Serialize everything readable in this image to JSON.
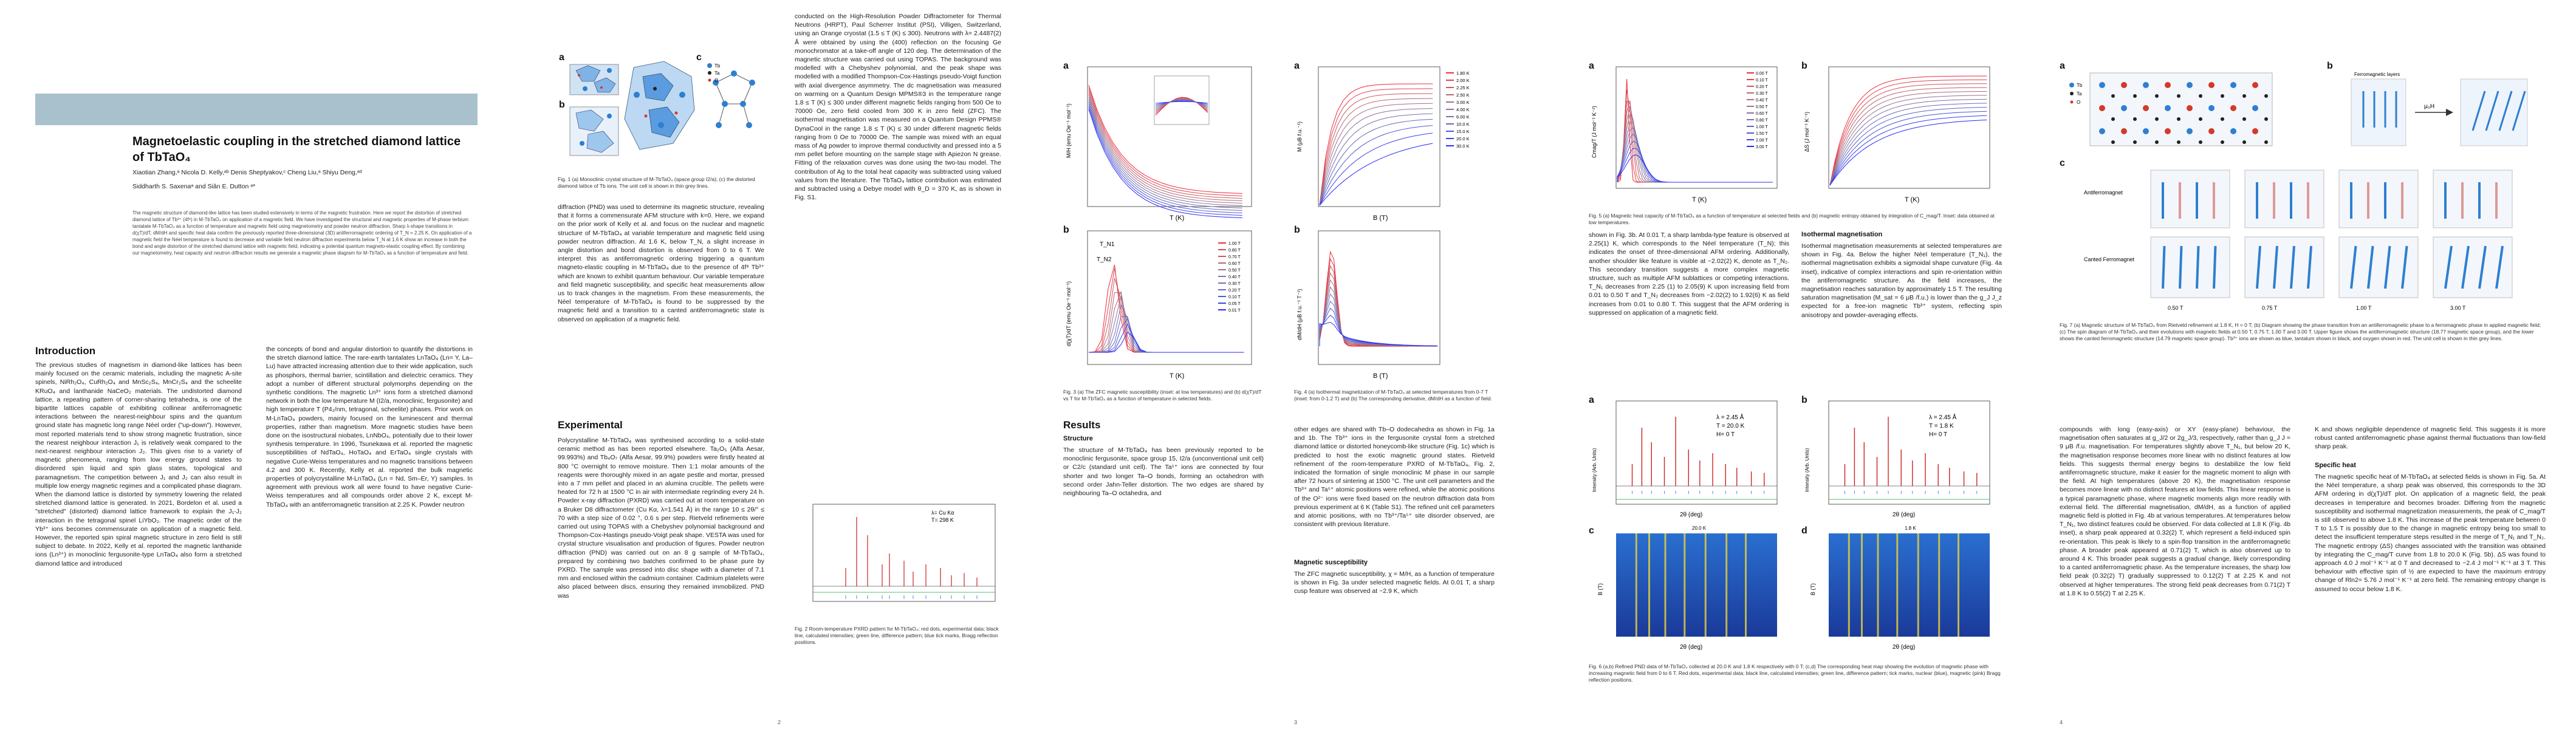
{
  "paper": {
    "title": "Magnetoelastic coupling in the stretched diamond lattice of TbTaO₄",
    "authors_line1": "Xiaotian Zhang,ᵃ Nicola D. Kelly,ᵃᵇ Denis Sheptyakov,ᶜ Cheng Liu,ᵃ Shiyu Deng,ᵃᵈ",
    "authors_line2": "Siddharth S. Saxenaᵃ and Siân E. Dutton ᵃ*",
    "abstract": "The magnetic structure of diamond-like lattice has been studied extensively in terms of the magnetic frustration. Here we report the distortion of stretched diamond lattice of Tb³⁺ (4f⁸) in M-TbTaO₄ on application of a magnetic field. We have investigated the structural and magnetic properties of M-phase terbium tantalate M-TbTaO₄ as a function of temperature and magnetic field using magnetometry and powder neutron diffraction. Sharp λ-shape transitions in d(χT)/dT, dM/dH and specific heat data confirm the previously reported three-dimensional (3D) antiferromagnetic ordering of T_N = 2.25 K. On application of a magnetic field the Néel temperature is found to decrease and variable field neutron diffraction experiments below T_N at 1.6 K show an increase in both the bond and angle distortion of the stretched diamond lattice with magnetic field, indicating a potential quantum magneto-elastic coupling effect. By combining our magnetometry, heat capacity and neutron diffraction results we generate a magnetic phase diagram for M-TbTaO₄ as a function of temperature and field."
  },
  "headings": {
    "introduction": "Introduction",
    "experimental": "Experimental",
    "results": "Results",
    "structure": "Structure",
    "magnetic_susceptibility": "Magnetic susceptibility",
    "isothermal_magnetisation": "Isothermal magnetisation",
    "specific_heat": "Specific heat"
  },
  "text": {
    "intro_col1": "The previous studies of magnetism in diamond-like lattices has been mainly focused on the ceramic materials, including the magnetic A-site spinels, NiRh₂O₄, CuRh₂O₄ and MnSc₂S₄, MnCr₂S₄ and the scheelite KRuO₄ and lanthanide NaCeO₂ materials. The undistorted diamond lattice, a repeating pattern of corner-sharing tetrahedra, is one of the bipartite lattices capable of exhibiting collinear antiferromagnetic interactions between the nearest-neighbour spins and the quantum ground state has magnetic long range Néel order (\"up-down\"). However, most reported materials tend to show strong magnetic frustration, since the nearest neighbour interaction J₁ is relatively weak compared to the next-nearest neighbour interaction J₂. This gives rise to a variety of magnetic phenomena, ranging from low energy ground states to disordered spin liquid and spin glass states, topological and paramagnetism. The competition between J₁ and J₂ can also result in multiple low energy magnetic regimes and a complicated phase diagram. When the diamond lattice is distorted by symmetry lowering the related stretched diamond lattice is generated. In 2021, Bordelon et al. used a \"stretched\" (distorted) diamond lattice framework to explain the J₁-J₂ interaction in the tetragonal spinel LiYbO₂. The magnetic order of the Yb³⁺ ions becomes commensurate on application of a magnetic field. However, the reported spin spiral magnetic structure in zero field is still subject to debate. In 2022, Kelly et al. reported the magnetic lanthanide ions (Ln³⁺) in monoclinic fergusonite-type LnTaO₄ also form a stretched diamond lattice and introduced",
    "intro_col2": "the concepts of bond and angular distortion to quantify the distortions in the stretch diamond lattice. The rare-earth tantalates LnTaO₄ (Ln= Y, La–Lu) have attracted increasing attention due to their wide application, such as phosphors, thermal barrier, scintillation and dielectric ceramics. They adopt a number of different structural polymorphs depending on the synthetic conditions. The magnetic Ln³⁺ ions form a stretched diamond network in both the low temperature M (I2/a, monoclinic, fergusonite) and high temperature T (P4₂/nm, tetragonal, scheelite) phases. Prior work on M-LnTaO₄ powders, mainly focused on the luminescent and thermal properties, rather than magnetism. More magnetic studies have been done on the isostructural niobates, LnNbO₄, potentially due to their lower synthesis temperature. In 1996, Tsunekawa et al. reported the magnetic susceptibilities of NdTaO₄, HoTaO₄ and ErTaO₄ single crystals with negative Curie-Weiss temperatures and no magnetic transitions between 4.2 and 300 K. Recently, Kelly et al. reported the bulk magnetic properties of polycrystalline M-LnTaO₄ (Ln = Nd, Sm–Er, Y) samples. In agreement with previous work all were found to have negative Curie-Weiss temperatures and all compounds order above 2 K, except M-TbTaO₄ with an antiferromagnetic transition at 2.25 K. Powder neutron",
    "p2_top": "diffraction (PND) was used to determine its magnetic structure, revealing that it forms a commensurate AFM structure with k=0. Here, we expand on the prior work of Kelly et al. and focus on the nuclear and magnetic structure of M-TbTaO₄ at variable temperature and magnetic field using powder neutron diffraction. At 1.6 K, below T_N, a slight increase in angle distortion and bond distortion is observed from 0 to 6 T. We interpret this as antiferromagnetic ordering triggering a quantum magneto-elastic coupling in M-TbTaO₄ due to the presence of 4f⁸ Tb³⁺ which are known to exhibit quantum behaviour. Our variable temperature and field magnetic susceptibility, and specific heat measurements allow us to track changes in the magnetism. From these measurements, the Néel temperature of M-TbTaO₄ is found to be suppressed by the magnetic field and a transition to a canted antiferromagnetic state is observed on application of a magnetic field.",
    "experimental": "Polycrystalline M-TbTaO₄ was synthesised according to a solid-state ceramic method as has been reported elsewhere. Ta₂O₅ (Alfa Aesar, 99.993%) and Tb₄O₇ (Alfa Aesar, 99.9%) powders were firstly heated at 800 °C overnight to remove moisture. Then 1:1 molar amounts of the reagents were thoroughly mixed in an agate pestle and mortar, pressed into a 7 mm pellet and placed in an alumina crucible. The pellets were heated for 72 h at 1500 °C in air with intermediate regrinding every 24 h. Powder x-ray diffraction (PXRD) was carried out at room temperature on a Bruker D8 diffractometer (Cu Kα, λ=1.541 Å) in the range 10 ≤ 2θ/° ≤ 70 with a step size of 0.02 °, 0.6 s per step. Rietveld refinements were carried out using TOPAS with a Chebyshev polynomial background and Thompson-Cox-Hastings pseudo-Voigt peak shape. VESTA was used for crystal structure visualisation and production of figures. Powder neutron diffraction (PND) was carried out on an 8 g sample of M-TbTaO₄, prepared by combining two batches confirmed to be phase pure by PXRD. The sample was pressed into disc shape with a diameter of 7.1 mm and enclosed within the cadmium container. Cadmium platelets were also placed between discs, ensuring they remained immobilized. PND was",
    "p2_col2": "conducted on the High-Resolution Powder Diffractometer for Thermal Neutrons (HRPT), Paul Scherrer Institut (PSI), Villigen, Switzerland, using an Orange cryostat (1.5 ≤ T (K) ≤ 300). Neutrons with λ= 2.4487(2) Å were obtained by using the (400) reflection on the focusing Ge monochromator at a take-off angle of 120 deg. The determination of the magnetic structure was carried out using TOPAS. The background was modelled with a Chebyshev polynomial, and the peak shape was modelled with a modified Thompson-Cox-Hastings pseudo-Voigt function with axial divergence asymmetry. The dc magnetisation was measured on warming on a Quantum Design MPMS®3 in the temperature range 1.8 ≤ T (K) ≤ 300 under different magnetic fields ranging from 500 Oe to 70000 Oe, zero field cooled from 300 K in zero field (ZFC). The isothermal magnetisation was measured on a Quantum Design PPMS® DynaCool in the range 1.8 ≤ T (K) ≤ 30 under different magnetic fields ranging from 0 Oe to 70000 Oe. The sample was mixed with an equal mass of Ag powder to improve thermal conductivity and pressed into a 5 mm pellet before mounting on the sample stage with Apiezon N grease. Fitting of the relaxation curves was done using the two-tau model. The contribution of Ag to the total heat capacity was subtracted using valued values from the literature. The TbTaO₄ lattice contribution was estimated and subtracted using a Debye model with θ_D = 370 K, as is shown in Fig. S1.",
    "structure_text": "The structure of M-TbTaO₄ has been previously reported to be monoclinic fergusonite, space group 15, I2/a (unconventional unit cell) or C2/c (standard unit cell). The Ta⁵⁺ ions are connected by four shorter and two longer Ta–O bonds, forming an octahedron with second order Jahn-Teller distortion. The two edges are shared by neighbouring Ta–O octahedra, and",
    "p3_top": "other edges are shared with Tb–O dodecahedra as shown in Fig. 1a and 1b. The Tb³⁺ ions in the fergusonite crystal form a stretched diamond lattice or distorted honeycomb-like structure (Fig. 1c) which is predicted to host the exotic magnetic ground states. Rietveld refinement of the room-temperature PXRD of M-TbTaO₄, Fig. 2, indicated the formation of single monoclinic M phase in our sample after 72 hours of sintering at 1500 °C. The unit cell parameters and the Tb³⁺ and Ta⁵⁺ atomic positions were refined, while the atomic positions of the O²⁻ ions were fixed based on the neutron diffraction data from previous experiment at 6 K (Table S1). The refined unit cell parameters and atomic positions, with no Tb³⁺/Ta⁵⁺ site disorder observed, are consistent with previous literature.",
    "magsus_text": "The ZFC magnetic susceptibility, χ = M/H, as a function of temperature is shown in Fig. 3a under selected magnetic fields. At 0.01 T, a sharp cusp feature was observed at ~2.9 K, which",
    "p3_col2": "agrees with the susceptibility data reported by Kelly et al. The cusp temperature decreases from 2.91(8) to 2.08(8) K upon increasing the field from 0.01 to 0.80 T. Above 0.80 T, the AFM ordering is gradually evolving to a FM-like ordering where χ saturates at low temperature. At high temperatures, the magnetic susceptibility is independent of field and fits the modified Curie-Weiss law:",
    "p3_col2b": "Fitting to the Curie-Weiss law was carried out using the data collected at 1 T for T > 50 K. The effective magnetic moment was calculated from the experimental data using μ_eff/μ_B = √(8C) and compared with the theoretical moment g_J√(J(J+1)). The effective moment inferred from the fit is 10.23 μB, which is of the same order of the theoretical value 9.72 μB, and the Weiss temperature is −9.4(7) K consistent with that reported by Kelly et al. The derivative of the product χT with respect to temperature, d(χT)/dT as a function of temperature at selected fields are in",
    "p4_col1": "shown in Fig. 3b. At 0.01 T, a sharp lambda-type feature is observed at 2.25(1) K, which corresponds to the Néel temperature (T_N); this indicates the onset of three-dimensional AFM ordering. Additionally, another shoulder like feature is visible at ~2.02(2) K, denote as T_N₂. This secondary transition suggests a more complex magnetic structure, such as multiple AFM sublattices or competing interactions. T_N₁ decreases from 2.25 (1) to 2.05(9) K upon increasing field from 0.01 to 0.50 T and T_N₂ decreases from ~2.02(2) to 1.92(6) K as field increases from 0.01 to 0.80 T. This suggest that the AFM ordering is suppressed on application of a magnetic field.",
    "isomag_text": "Isothermal magnetisation measurements at selected temperatures are shown in Fig. 4a. Below the higher Néel temperature (T_N₁), the isothermal magnetisation exhibits a sigmoidal shape curvature (Fig. 4a inset), indicative of complex interactions and spin re-orientation within the antiferromagnetic structure. As the field increases, the magnetisation reaches saturation by approximately 1.5 T. The resulting saturation magnetisation (M_sat = 6 μB /f.u.) is lower than the g_J J_z expected for a free-ion magnetic Tb³⁺ system, reflecting spin anisotropy and powder-averaging effects.",
    "p4_col3": "compounds with long (easy-axis) or XY (easy-plane) behaviour, the magnetisation often saturates at g_J/2 or 2g_J/3, respectively, rather than g_J J = 9 μB /f.u. magnetisation. For temperatures slightly above T_N₁, but below 20 K, the magnetisation response becomes more linear with no distinct features at low fields. This suggests thermal energy begins to destabilize the low field antiferromagnetic structure, make it easier for the magnetic moment to align with the field. At high temperatures (above 20 K), the magnetisation response becomes more linear with no distinct features at low fields. This linear response is a typical paramagnetic phase, where magnetic moments align more readily with external field. The differential magnetisation, dM/dH, as a function of applied magnetic field is plotted in Fig. 4b at various temperatures. At temperatures below T_N₁, two distinct features could be observed. For data collected at 1.8 K (Fig. 4b inset), a sharp peak appeared at 0.32(2) T, which represent a field-induced spin re-orientation. This peak is likely to a spin-flop transition in the antiferromagnetic phase. A broader peak appeared at 0.71(2) T, which is also observed up to around 4 K. This broader peak suggests a gradual change, likely corresponding to a canted antiferromagnetic phase. As the temperature increases, the sharp low field peak (0.32(2) T) gradually suppressed to 0.12(2) T at 2.25 K and not observed at higher temperatures. The strong field peak decreases from 0.71(2) T at 1.8 K to 0.55(2) T at 2.25 K.",
    "p4_col4": "K and shows negligible dependence of magnetic field. This suggests it is more robust canted antiferromagnetic phase against thermal fluctuations than low-field sharp peak.",
    "specheat_text": "The magnetic specific heat of M-TbTaO₄ at selected fields is shown in Fig. 5a. At the Néel temperature, a sharp peak was observed, this corresponds to the 3D AFM ordering in d(χT)/dT plot. On application of a magnetic field, the peak decreases in temperature and becomes broader. Differing from the magnetic susceptibility and isothermal magnetization measurements, the peak of C_mag/T is still observed to above 1.8 K. This increase of the peak temperature between 0 T to 1.5 T is possibly due to the change in magnetic entropy being too small to detect the insufficient temperature steps resulted in the merge of T_N₁ and T_N₂. The magnetic entropy (ΔS) changes associated with the transition was obtained by integrating the C_mag/T curve from 1.8 to 20.0 K (Fig. 5b). ΔS was found to approach 4.0 J mol⁻¹ K⁻¹ at 0 T and decreased to ~2.4 J mol⁻¹ K⁻¹ at 3 T. This behaviour with effective spin of ½ are expected to have the maximum entropy change of Rln2= 5.76 J mol⁻¹ K⁻¹ at zero field. The remaining entropy change is assumed to occur below 1.8 K."
  },
  "equation": "χ = C / (T − θ_W) + χ₀",
  "captions": {
    "fig1": "Fig. 1 (a) Monoclinic crystal structure of M-TbTaO₄ (space group I2/a); (c) the distorted diamond lattice of Tb ions. The unit cell is shown in thin grey lines.",
    "fig2": "Fig. 2 Room-temperature PXRD pattern for M-TbTaO₄: red dots, experimental data; black line, calculated intensities; green line, difference pattern; blue tick marks, Bragg reflection positions.",
    "fig3": "Fig. 3 (a) The ZFC magnetic susceptibility (inset: at low temperatures) and (b) d(χT)/dT vs T for M-TbTaO₄ as a function of temperature in selected fields.",
    "fig4": "Fig. 4 (a) Isothermal magnetization of M-TbTaO₄ at selected temperatures from 0-7 T (inset: from 0-1.2 T) and (b) The corresponding derivative, dM/dH as a function of field.",
    "fig5": "Fig. 5 (a) Magnetic heat capacity of M-TbTaO₄ as a function of temperature at selected fields and (b) magnetic entropy obtained by integration of C_mag/T. Inset: data obtained at low temperatures.",
    "fig6": "Fig. 6 (a,b) Refined PND data of M-TbTaO₄ collected at 20.0 K and 1.8 K respectively with 0 T; (c,d) The corresponding heat map showing the evolution of magnetic phase with increasing magnetic field from 0 to 6 T. Red dots, experimental data; black line, calculated intensities; green line, difference pattern; tick marks, nuclear (blue), magnetic (pink) Bragg reflection positions.",
    "fig7": "Fig. 7 (a) Magnetic structure of M-TbTaO₄ from Rietveld refinement at 1.8 K, H = 0 T; (b) Diagram showing the phase transition from an antiferromagnetic phase to a ferromagnetic phase in applied magnetic field; (c) The spin diagram of M-TbTaO₄ and their evolutions with magnetic fields at 0.50 T, 0.75 T, 1.00 T and 3.00 T. Upper figure shows the antiferromagnetic structure (18.77 magnetic space group), and the lower shows the canted ferromagnetic structure (14.79 magnetic space group). Tb³⁺ ions are shown as blue, tantalum shown in black, and oxygen shown in red. The unit cell is shown in thin grey lines."
  },
  "fig_labels": {
    "fig1_a": "a",
    "fig1_b": "b",
    "fig1_c": "c",
    "fig3_a": "a",
    "fig3_b": "b",
    "fig4_a": "a",
    "fig4_b": "b",
    "fig5_a": "a",
    "fig5_b": "b",
    "fig6_a": "a",
    "fig6_b": "b",
    "fig6_c": "c",
    "fig6_d": "d",
    "fig7_a": "a",
    "fig7_b": "b",
    "fig7_c": "c"
  },
  "fig1_legend": {
    "tb": "Tb",
    "ta": "Ta",
    "o": "O"
  },
  "fig2_legend": {
    "line1": "λ= Cu Kα",
    "line2": "T= 298 K"
  },
  "fig3": {
    "a_ylabel": "M/H (emu Oe⁻¹ mol⁻¹)",
    "b_ylabel": "d(χT)/dT (emu Oe⁻¹ mol⁻¹)",
    "xlabel": "T (K)",
    "legend_fields": [
      "1.00 T",
      "0.80 T",
      "0.70 T",
      "0.60 T",
      "0.50 T",
      "0.40 T",
      "0.30 T",
      "0.20 T",
      "0.10 T",
      "0.05 T",
      "0.01 T"
    ],
    "tn1": "T_N1",
    "tn2": "T_N2"
  },
  "fig4": {
    "a_ylabel": "M (μB f.u.⁻¹)",
    "b_ylabel": "dM/dH (μB f.u.⁻¹ T⁻¹)",
    "xlabel": "B (T)",
    "legend_temps": [
      "1.80 K",
      "2.00 K",
      "2.25 K",
      "2.50 K",
      "3.00 K",
      "4.00 K",
      "6.00 K",
      "10.0 K",
      "15.0 K",
      "20.0 K",
      "30.0 K"
    ]
  },
  "fig5": {
    "a_ylabel": "Cmag/T (J mol⁻¹ K⁻²)",
    "b_ylabel": "ΔS (J mol⁻¹ K⁻¹)",
    "xlabel": "T (K)",
    "legend_fields": [
      "0.00 T",
      "0.10 T",
      "0.20 T",
      "0.30 T",
      "0.40 T",
      "0.50 T",
      "0.60 T",
      "0.80 T",
      "1.00 T",
      "1.50 T",
      "2.00 T",
      "3.00 T"
    ]
  },
  "fig6": {
    "a_lines": [
      "λ = 2.45 Å",
      "T = 20.0 K",
      "H= 0 T"
    ],
    "b_lines": [
      "λ = 2.45 Å",
      "T = 1.8 K",
      "H= 0 T"
    ],
    "ylabel_int": "Intensity (Arb. Units)",
    "ylabel_b": "B (T)",
    "xlabel": "2θ (deg)",
    "c_title": "20.0 K",
    "d_title": "1.8 K"
  },
  "fig7": {
    "fm_layers": "Ferromagnetic layers",
    "mu_h": "μ₀H",
    "afm": "Antiferromagnet",
    "canted": "Canted Ferromagnet",
    "fields": [
      "0.50 T",
      "0.75 T",
      "1.00 T",
      "3.00 T"
    ]
  },
  "colors": {
    "banner": "#a9c1cc",
    "tb_blue": "#2e7fd0",
    "ta_black": "#222222",
    "o_red": "#d23a2a",
    "pxrd_red": "#cc2222",
    "diff_green": "#22aa44",
    "tick_blue": "#3366cc"
  }
}
